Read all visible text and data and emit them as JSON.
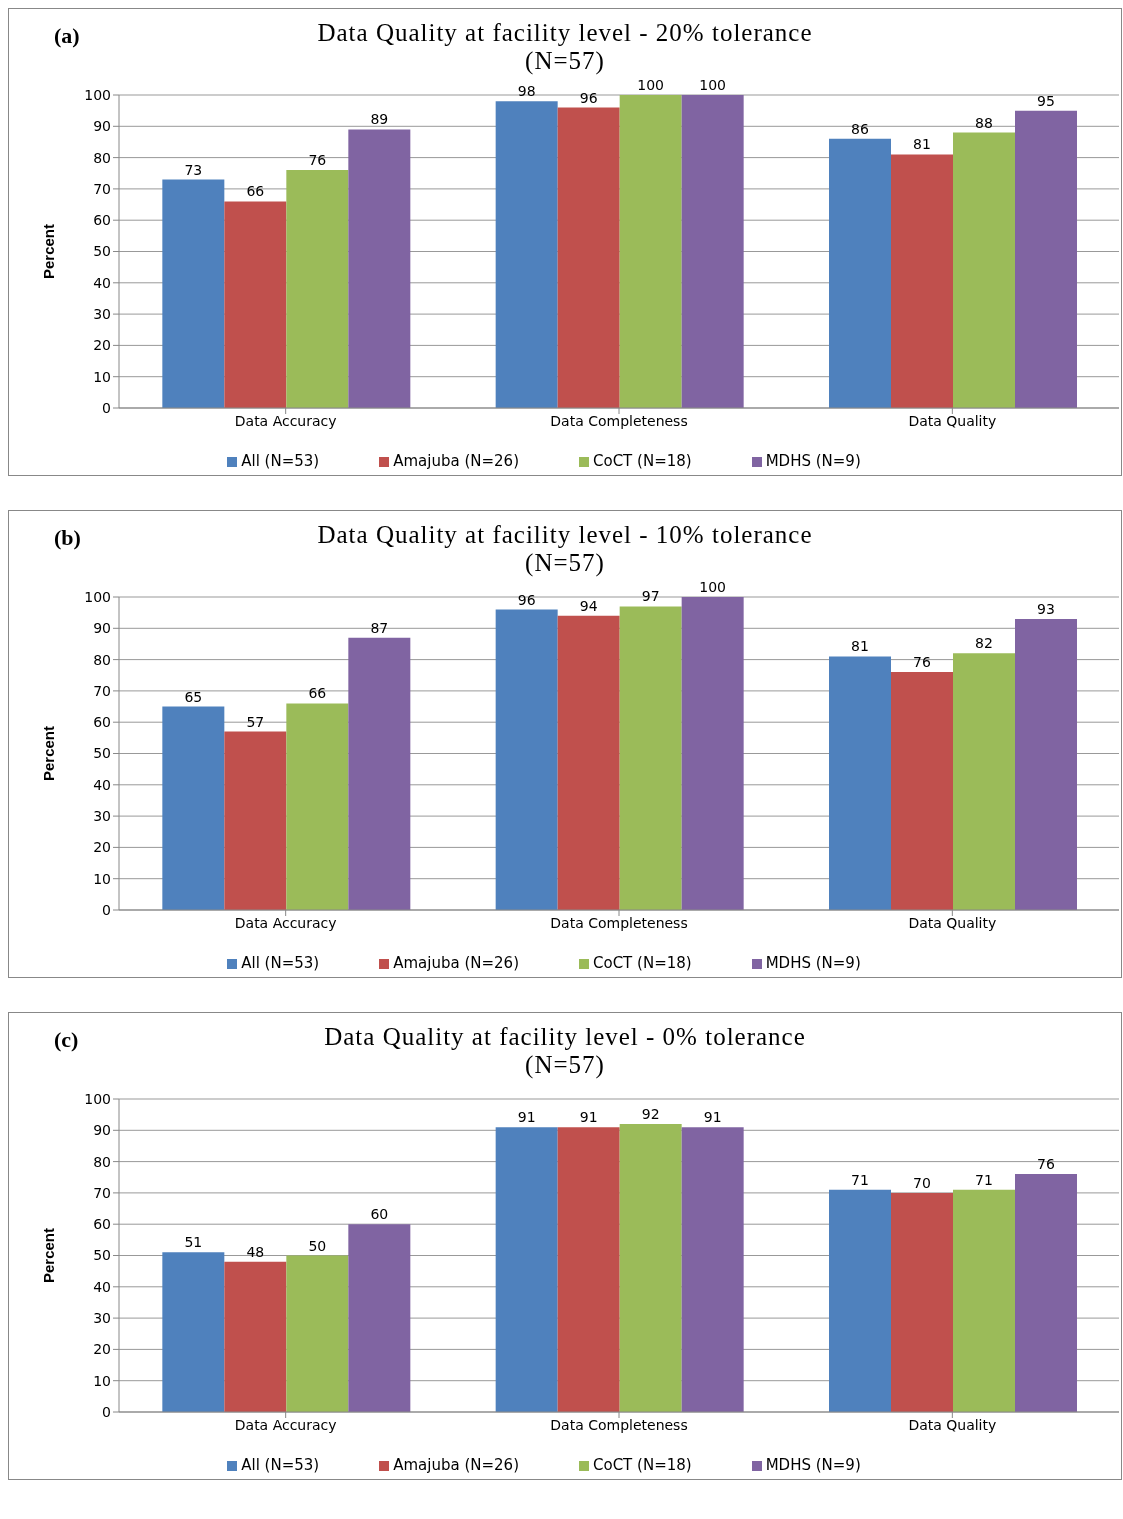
{
  "chart_data": [
    {
      "type": "bar",
      "title": "Data Quality at facility level - 20% tolerance",
      "subtitle": "(N=57)",
      "annotations": [
        "(a)"
      ],
      "ylabel": "Percent",
      "categories": [
        "Data Accuracy",
        "Data Completeness",
        "Data Quality"
      ],
      "series": [
        {
          "name": "All (N=53)",
          "color": "#4f81bd",
          "values": [
            73,
            98,
            86
          ]
        },
        {
          "name": "Amajuba (N=26)",
          "color": "#c0504d",
          "values": [
            66,
            96,
            81
          ]
        },
        {
          "name": "CoCT (N=18)",
          "color": "#9bbb59",
          "values": [
            76,
            100,
            88
          ]
        },
        {
          "name": "MDHS (N=9)",
          "color": "#8064a2",
          "values": [
            89,
            100,
            95
          ]
        }
      ],
      "ylim": [
        0,
        100
      ],
      "yticks": [
        0,
        10,
        20,
        30,
        40,
        50,
        60,
        70,
        80,
        90,
        100
      ],
      "grid": "y",
      "legend": "bottom",
      "data_labels": true
    },
    {
      "type": "bar",
      "title": "Data Quality at facility level - 10% tolerance",
      "subtitle": "(N=57)",
      "annotations": [
        "(b)"
      ],
      "ylabel": "Percent",
      "categories": [
        "Data Accuracy",
        "Data Completeness",
        "Data Quality"
      ],
      "series": [
        {
          "name": "All (N=53)",
          "color": "#4f81bd",
          "values": [
            65,
            96,
            81
          ]
        },
        {
          "name": "Amajuba (N=26)",
          "color": "#c0504d",
          "values": [
            57,
            94,
            76
          ]
        },
        {
          "name": "CoCT (N=18)",
          "color": "#9bbb59",
          "values": [
            66,
            97,
            82
          ]
        },
        {
          "name": "MDHS (N=9)",
          "color": "#8064a2",
          "values": [
            87,
            100,
            93
          ]
        }
      ],
      "ylim": [
        0,
        100
      ],
      "yticks": [
        0,
        10,
        20,
        30,
        40,
        50,
        60,
        70,
        80,
        90,
        100
      ],
      "grid": "y",
      "legend": "bottom",
      "data_labels": true
    },
    {
      "type": "bar",
      "title": "Data Quality at facility level - 0% tolerance",
      "subtitle": "(N=57)",
      "annotations": [
        "(c)"
      ],
      "ylabel": "Percent",
      "categories": [
        "Data Accuracy",
        "Data Completeness",
        "Data Quality"
      ],
      "series": [
        {
          "name": "All (N=53)",
          "color": "#4f81bd",
          "values": [
            51,
            91,
            71
          ]
        },
        {
          "name": "Amajuba (N=26)",
          "color": "#c0504d",
          "values": [
            48,
            91,
            70
          ]
        },
        {
          "name": "CoCT (N=18)",
          "color": "#9bbb59",
          "values": [
            50,
            92,
            71
          ]
        },
        {
          "name": "MDHS (N=9)",
          "color": "#8064a2",
          "values": [
            60,
            91,
            76
          ]
        }
      ],
      "ylim": [
        0,
        100
      ],
      "yticks": [
        0,
        10,
        20,
        30,
        40,
        50,
        60,
        70,
        80,
        90,
        100
      ],
      "grid": "y",
      "legend": "bottom",
      "data_labels": true
    }
  ]
}
